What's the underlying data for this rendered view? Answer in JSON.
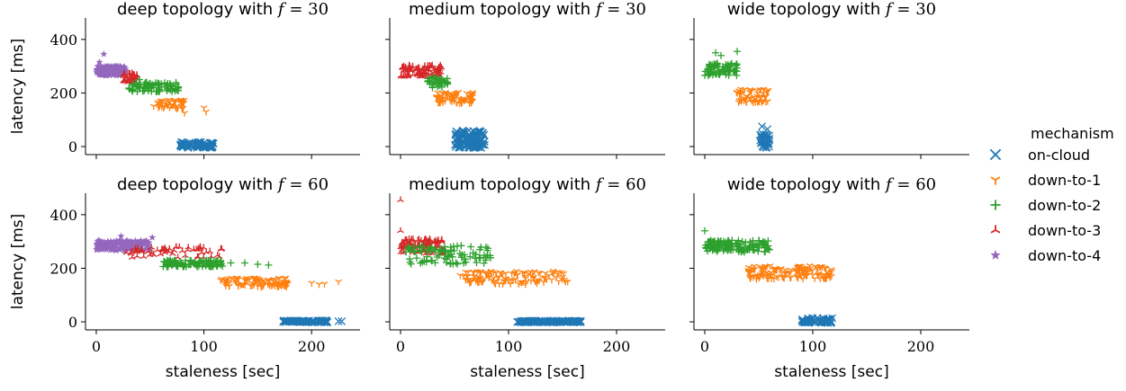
{
  "figure": {
    "legend_title": "mechanism",
    "legend_placement": "right",
    "x_tick_labels": [
      "0",
      "100",
      "200"
    ],
    "y_tick_labels": [
      "0",
      "200",
      "400"
    ],
    "series": [
      {
        "name": "on-cloud",
        "color": "#1f77b4",
        "marker": "x"
      },
      {
        "name": "down-to-1",
        "color": "#ff7f0e",
        "marker": "tri_down"
      },
      {
        "name": "down-to-2",
        "color": "#2ca02c",
        "marker": "plus"
      },
      {
        "name": "down-to-3",
        "color": "#d62728",
        "marker": "tri_up"
      },
      {
        "name": "down-to-4",
        "color": "#9467bd",
        "marker": "star"
      }
    ]
  },
  "chart_data": [
    {
      "type": "scatter",
      "title": "deep topology with f = 30",
      "title_prefix": "deep topology with ",
      "title_var": "f",
      "title_eq": " = 30",
      "xlabel": "",
      "ylabel": "latency [ms]",
      "xlim": [
        -10,
        245
      ],
      "ylim": [
        -30,
        480
      ],
      "grid": false,
      "series": [
        {
          "name": "down-to-4",
          "clusters": [
            {
              "x": [
                0,
                28
              ],
              "y": [
                265,
                300
              ],
              "n": 150
            }
          ],
          "points": [
            [
              7,
              345
            ],
            [
              3,
              315
            ]
          ]
        },
        {
          "name": "down-to-3",
          "clusters": [
            {
              "x": [
                25,
                38
              ],
              "y": [
                240,
                275
              ],
              "n": 40
            }
          ],
          "points": []
        },
        {
          "name": "down-to-2",
          "clusters": [
            {
              "x": [
                30,
                78
              ],
              "y": [
                205,
                240
              ],
              "n": 80
            }
          ],
          "points": [
            [
              40,
              250
            ]
          ]
        },
        {
          "name": "down-to-1",
          "clusters": [
            {
              "x": [
                53,
                82
              ],
              "y": [
                140,
                175
              ],
              "n": 45
            }
          ],
          "points": [
            [
              100,
              145
            ],
            [
              102,
              130
            ],
            [
              82,
              125
            ]
          ]
        },
        {
          "name": "on-cloud",
          "clusters": [
            {
              "x": [
                78,
                110
              ],
              "y": [
                -5,
                18
              ],
              "n": 70
            }
          ],
          "points": []
        }
      ]
    },
    {
      "type": "scatter",
      "title": "medium topology with f = 30",
      "title_prefix": "medium topology with ",
      "title_var": "f",
      "title_eq": " = 30",
      "xlabel": "",
      "ylabel": "",
      "xlim": [
        -10,
        245
      ],
      "ylim": [
        -30,
        480
      ],
      "grid": false,
      "series": [
        {
          "name": "down-to-3",
          "clusters": [
            {
              "x": [
                0,
                38
              ],
              "y": [
                260,
                305
              ],
              "n": 90
            }
          ],
          "points": []
        },
        {
          "name": "down-to-2",
          "clusters": [
            {
              "x": [
                25,
                45
              ],
              "y": [
                220,
                260
              ],
              "n": 40
            }
          ],
          "points": []
        },
        {
          "name": "down-to-1",
          "clusters": [
            {
              "x": [
                33,
                68
              ],
              "y": [
                160,
                205
              ],
              "n": 70
            }
          ],
          "points": []
        },
        {
          "name": "on-cloud",
          "clusters": [
            {
              "x": [
                50,
                78
              ],
              "y": [
                -5,
                60
              ],
              "n": 120
            }
          ],
          "points": []
        }
      ]
    },
    {
      "type": "scatter",
      "title": "wide topology with f = 30",
      "title_prefix": "wide topology with ",
      "title_var": "f",
      "title_eq": " = 30",
      "xlabel": "",
      "ylabel": "",
      "xlim": [
        -10,
        245
      ],
      "ylim": [
        -30,
        480
      ],
      "grid": false,
      "series": [
        {
          "name": "down-to-2",
          "clusters": [
            {
              "x": [
                0,
                30
              ],
              "y": [
                265,
                315
              ],
              "n": 70
            }
          ],
          "points": [
            [
              10,
              350
            ],
            [
              30,
              355
            ],
            [
              15,
              340
            ]
          ]
        },
        {
          "name": "down-to-1",
          "clusters": [
            {
              "x": [
                28,
                60
              ],
              "y": [
                165,
                215
              ],
              "n": 60
            }
          ],
          "points": []
        },
        {
          "name": "on-cloud",
          "clusters": [
            {
              "x": [
                51,
                60
              ],
              "y": [
                -5,
                50
              ],
              "n": 30
            }
          ],
          "points": [
            [
              53,
              75
            ],
            [
              58,
              65
            ]
          ]
        }
      ]
    },
    {
      "type": "scatter",
      "title": "deep topology with f = 60",
      "title_prefix": "deep topology with ",
      "title_var": "f",
      "title_eq": " = 60",
      "xlabel": "",
      "ylabel": "latency [ms]",
      "xlim": [
        -10,
        245
      ],
      "ylim": [
        -30,
        480
      ],
      "grid": false,
      "series": [
        {
          "name": "down-to-4",
          "clusters": [
            {
              "x": [
                0,
                50
              ],
              "y": [
                265,
                305
              ],
              "n": 140
            }
          ],
          "points": [
            [
              52,
              315
            ],
            [
              23,
              320
            ]
          ]
        },
        {
          "name": "down-to-3",
          "clusters": [
            {
              "x": [
                28,
                118
              ],
              "y": [
                240,
                280
              ],
              "n": 60
            }
          ],
          "points": []
        },
        {
          "name": "down-to-2",
          "clusters": [
            {
              "x": [
                62,
                118
              ],
              "y": [
                205,
                230
              ],
              "n": 90
            }
          ],
          "points": [
            [
              125,
              220
            ],
            [
              138,
              220
            ],
            [
              150,
              215
            ],
            [
              160,
              212
            ]
          ]
        },
        {
          "name": "down-to-1",
          "clusters": [
            {
              "x": [
                115,
                178
              ],
              "y": [
                130,
                165
              ],
              "n": 100
            }
          ],
          "points": [
            [
              200,
              145
            ],
            [
              207,
              140
            ],
            [
              212,
              142
            ],
            [
              225,
              150
            ]
          ]
        },
        {
          "name": "on-cloud",
          "clusters": [
            {
              "x": [
                173,
                215
              ],
              "y": [
                -2,
                5
              ],
              "n": 90
            }
          ],
          "points": [
            [
              225,
              2
            ],
            [
              228,
              2
            ]
          ]
        }
      ]
    },
    {
      "type": "scatter",
      "title": "medium topology with f = 60",
      "title_prefix": "medium topology with ",
      "title_var": "f",
      "title_eq": " = 60",
      "xlabel": "staleness [sec]",
      "ylabel": "",
      "xlim": [
        -10,
        245
      ],
      "ylim": [
        -30,
        480
      ],
      "grid": false,
      "series": [
        {
          "name": "down-to-3",
          "clusters": [
            {
              "x": [
                0,
                40
              ],
              "y": [
                255,
                310
              ],
              "n": 100
            }
          ],
          "points": [
            [
              0,
              455
            ],
            [
              0,
              340
            ]
          ]
        },
        {
          "name": "down-to-2",
          "clusters": [
            {
              "x": [
                5,
                85
              ],
              "y": [
                215,
                285
              ],
              "n": 90
            }
          ],
          "points": []
        },
        {
          "name": "down-to-1",
          "clusters": [
            {
              "x": [
                55,
                155
              ],
              "y": [
                140,
                190
              ],
              "n": 120
            }
          ],
          "points": []
        },
        {
          "name": "on-cloud",
          "clusters": [
            {
              "x": [
                108,
                167
              ],
              "y": [
                -2,
                4
              ],
              "n": 130
            }
          ],
          "points": []
        }
      ]
    },
    {
      "type": "scatter",
      "title": "wide topology with f = 60",
      "title_prefix": "wide topology with ",
      "title_var": "f",
      "title_eq": " = 60",
      "xlabel": "staleness [sec]",
      "ylabel": "",
      "xlim": [
        -10,
        245
      ],
      "ylim": [
        -30,
        480
      ],
      "grid": false,
      "series": [
        {
          "name": "down-to-2",
          "clusters": [
            {
              "x": [
                0,
                60
              ],
              "y": [
                260,
                305
              ],
              "n": 130
            }
          ],
          "points": [
            [
              0,
              340
            ]
          ]
        },
        {
          "name": "down-to-1",
          "clusters": [
            {
              "x": [
                40,
                118
              ],
              "y": [
                160,
                210
              ],
              "n": 140
            }
          ],
          "points": []
        },
        {
          "name": "on-cloud",
          "clusters": [
            {
              "x": [
                90,
                118
              ],
              "y": [
                -5,
                15
              ],
              "n": 60
            }
          ],
          "points": []
        }
      ]
    }
  ]
}
